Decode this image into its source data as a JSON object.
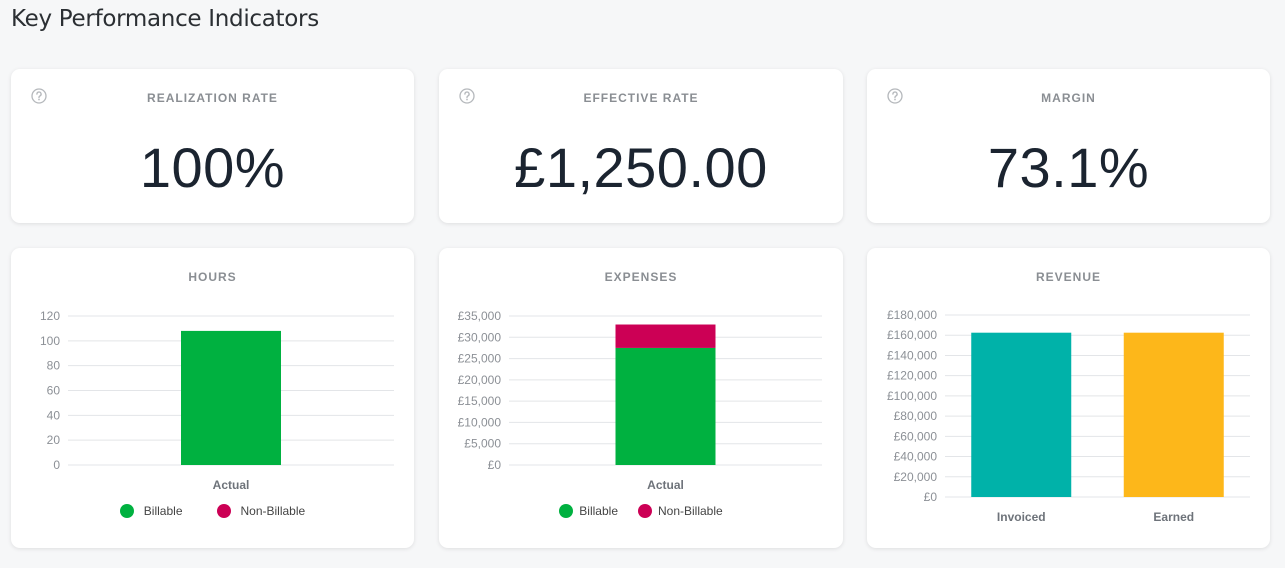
{
  "page": {
    "title": "Key Performance Indicators"
  },
  "kpis": [
    {
      "title": "REALIZATION RATE",
      "value": "100%"
    },
    {
      "title": "EFFECTIVE RATE",
      "value": "£1,250.00"
    },
    {
      "title": "MARGIN",
      "value": "73.1%"
    }
  ],
  "colors": {
    "billable": "#00b140",
    "non_billable": "#cc0055",
    "invoiced": "#00b2a9",
    "earned": "#fdb71a"
  },
  "icons": {
    "help": "question-circle-icon"
  },
  "chart_data": [
    {
      "type": "bar",
      "title": "HOURS",
      "categories": [
        "Actual"
      ],
      "ylim": [
        0,
        120
      ],
      "yticks": [
        0,
        20,
        40,
        60,
        80,
        100,
        120
      ],
      "ytick_labels": [
        "0",
        "20",
        "40",
        "60",
        "80",
        "100",
        "120"
      ],
      "stacked": true,
      "grid": true,
      "legend": "bottom",
      "series": [
        {
          "name": "Billable",
          "values": [
            108
          ]
        },
        {
          "name": "Non-Billable",
          "values": [
            0
          ]
        }
      ]
    },
    {
      "type": "bar",
      "title": "EXPENSES",
      "categories": [
        "Actual"
      ],
      "ylim": [
        0,
        35000
      ],
      "yticks": [
        0,
        5000,
        10000,
        15000,
        20000,
        25000,
        30000,
        35000
      ],
      "ytick_labels": [
        "£0",
        "£5,000",
        "£10,000",
        "£15,000",
        "£20,000",
        "£25,000",
        "£30,000",
        "£35,000"
      ],
      "stacked": true,
      "grid": true,
      "legend": "bottom",
      "series": [
        {
          "name": "Billable",
          "values": [
            27500
          ]
        },
        {
          "name": "Non-Billable",
          "values": [
            5500
          ]
        }
      ]
    },
    {
      "type": "bar",
      "title": "REVENUE",
      "categories": [
        "Invoiced",
        "Earned"
      ],
      "ylim": [
        0,
        180000
      ],
      "yticks": [
        0,
        20000,
        40000,
        60000,
        80000,
        100000,
        120000,
        140000,
        160000,
        180000
      ],
      "ytick_labels": [
        "£0",
        "£20,000",
        "£40,000",
        "£60,000",
        "£80,000",
        "£100,000",
        "£120,000",
        "£140,000",
        "£160,000",
        "£180,000"
      ],
      "stacked": false,
      "grid": true,
      "legend": "none",
      "values": [
        162500,
        162500
      ]
    }
  ]
}
